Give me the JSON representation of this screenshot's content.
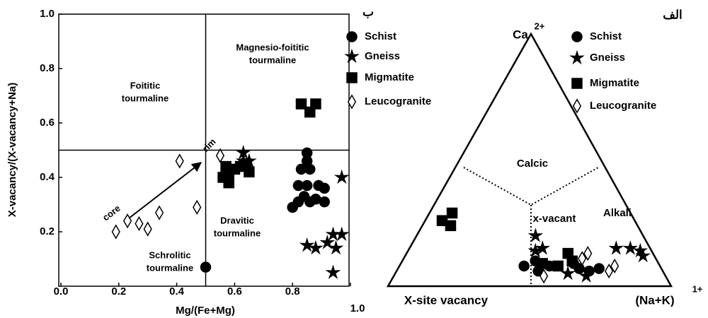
{
  "chart_data": [
    {
      "type": "scatter",
      "label": "ب",
      "xlabel": "Mg/(Fe+Mg)",
      "ylabel": "X-vacancy/(X-vacancy+Na)",
      "xlim": [
        0,
        1
      ],
      "ylim": [
        0,
        1
      ],
      "xticks": [
        {
          "value": 0,
          "label": "0.0"
        },
        0.2,
        0.4,
        0.6,
        0.8,
        {
          "value": 1,
          "label": "1.0"
        }
      ],
      "yticks": [
        0.2,
        0.4,
        0.6,
        0.8,
        {
          "value": 1,
          "label": "1.0"
        }
      ],
      "boundaries": {
        "x": 0.5,
        "y": 0.5
      },
      "regions": [
        [
          "Foititic",
          "tourmaline"
        ],
        [
          "Magnesio-foititic",
          "tourmaline"
        ],
        [
          "Dravitic",
          "tourmaline"
        ],
        [
          "Schrolitic",
          "tourmaline"
        ]
      ],
      "arrow": {
        "start": "core",
        "end": "rim"
      },
      "series": [
        {
          "name": "Schist",
          "color": "#000000",
          "marker": "circle",
          "filled": true,
          "x": [
            0.85,
            0.85,
            0.86,
            0.83,
            0.82,
            0.85,
            0.84,
            0.8,
            0.82,
            0.86,
            0.89,
            0.91,
            0.88,
            0.91,
            0.5
          ],
          "values": [
            0.49,
            0.46,
            0.43,
            0.43,
            0.37,
            0.37,
            0.33,
            0.29,
            0.31,
            0.31,
            0.37,
            0.36,
            0.32,
            0.31,
            0.07
          ]
        },
        {
          "name": "Gneiss",
          "color": "#000000",
          "marker": "star",
          "filled": true,
          "x": [
            0.63,
            0.63,
            0.65,
            0.97,
            0.94,
            0.97,
            0.92,
            0.95,
            0.85,
            0.88,
            0.94
          ],
          "values": [
            0.49,
            0.46,
            0.46,
            0.4,
            0.19,
            0.19,
            0.16,
            0.14,
            0.15,
            0.14,
            0.05
          ]
        },
        {
          "name": "Migmatite",
          "color": "#000000",
          "marker": "square",
          "filled": true,
          "x": [
            0.83,
            0.88,
            0.86,
            0.57,
            0.6,
            0.62,
            0.58,
            0.56,
            0.58,
            0.65,
            0.64
          ],
          "values": [
            0.67,
            0.67,
            0.64,
            0.44,
            0.43,
            0.44,
            0.41,
            0.4,
            0.38,
            0.42,
            0.45
          ]
        },
        {
          "name": "Leucogranite",
          "color": "#000000",
          "marker": "diamond",
          "filled": false,
          "x": [
            0.41,
            0.55,
            0.19,
            0.23,
            0.27,
            0.3,
            0.34,
            0.47
          ],
          "values": [
            0.46,
            0.48,
            0.2,
            0.24,
            0.23,
            0.21,
            0.27,
            0.29
          ]
        }
      ]
    },
    {
      "type": "ternary",
      "label": "الف",
      "apices": {
        "top": "Ca",
        "top_charge": "2+",
        "left": "X-site vacancy",
        "right": "(Na+K)",
        "right_charge": "1+"
      },
      "regions": [
        "Calcic",
        "x-vacant",
        "Alkali"
      ],
      "series": [
        {
          "name": "Schist",
          "color": "#000000",
          "marker": "circle",
          "filled": true,
          "values": [
            [
              0.08,
              0.48,
              0.44
            ],
            [
              0.1,
              0.43,
              0.47
            ],
            [
              0.06,
              0.44,
              0.5
            ],
            [
              0.08,
              0.39,
              0.53
            ],
            [
              0.07,
              0.29,
              0.64
            ],
            [
              0.06,
              0.26,
              0.68
            ],
            [
              0.07,
              0.22,
              0.71
            ],
            [
              0.09,
              0.3,
              0.61
            ]
          ]
        },
        {
          "name": "Gneiss",
          "color": "#000000",
          "marker": "star",
          "filled": true,
          "values": [
            [
              0.2,
              0.38,
              0.42
            ],
            [
              0.15,
              0.38,
              0.47
            ],
            [
              0.14,
              0.41,
              0.45
            ],
            [
              0.15,
              0.12,
              0.73
            ],
            [
              0.15,
              0.07,
              0.78
            ],
            [
              0.14,
              0.04,
              0.82
            ],
            [
              0.12,
              0.04,
              0.84
            ],
            [
              0.05,
              0.34,
              0.61
            ],
            [
              0.04,
              0.28,
              0.68
            ]
          ]
        },
        {
          "name": "Migmatite",
          "color": "#000000",
          "marker": "square",
          "filled": true,
          "values": [
            [
              0.29,
              0.63,
              0.08
            ],
            [
              0.26,
              0.68,
              0.06
            ],
            [
              0.24,
              0.66,
              0.1
            ],
            [
              0.13,
              0.3,
              0.57
            ],
            [
              0.1,
              0.3,
              0.6
            ],
            [
              0.08,
              0.36,
              0.56
            ],
            [
              0.09,
              0.41,
              0.5
            ]
          ]
        },
        {
          "name": "Leucogranite",
          "color": "#000000",
          "marker": "diamond",
          "filled": false,
          "values": [
            [
              0.04,
              0.43,
              0.53
            ],
            [
              0.11,
              0.26,
              0.63
            ],
            [
              0.06,
              0.19,
              0.75
            ],
            [
              0.08,
              0.16,
              0.76
            ],
            [
              0.13,
              0.23,
              0.64
            ]
          ]
        }
      ]
    }
  ]
}
